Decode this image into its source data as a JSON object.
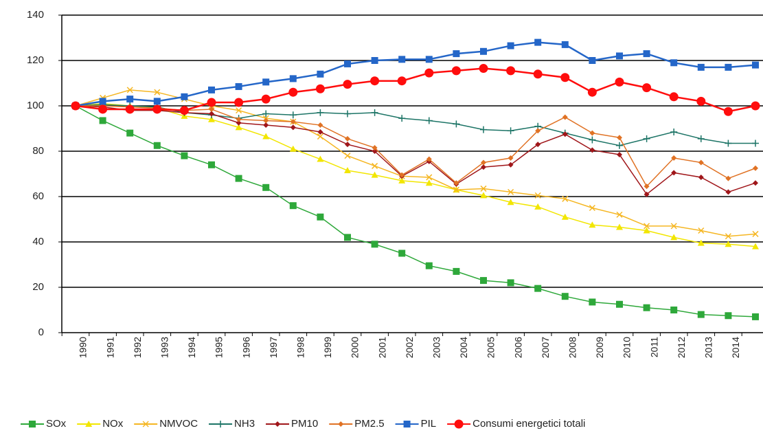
{
  "chart_data": {
    "type": "line",
    "categories": [
      "1990",
      "1991",
      "1992",
      "1993",
      "1994",
      "1995",
      "1996",
      "1997",
      "1998",
      "1999",
      "2000",
      "2001",
      "2002",
      "2003",
      "2004",
      "2005",
      "2006",
      "2007",
      "2008",
      "2009",
      "2010",
      "2011",
      "2012",
      "2013",
      "2014",
      null
    ],
    "ylim": [
      0,
      140
    ],
    "yticks": [
      0,
      20,
      40,
      60,
      80,
      100,
      120,
      140
    ],
    "grid": true,
    "legend": "bottom",
    "series": [
      {
        "name": "SOx",
        "color": "#2ea83a",
        "marker": "square",
        "values": [
          100,
          93.5,
          88,
          82.5,
          78,
          74,
          68,
          64,
          56,
          51,
          42,
          39,
          35,
          29.5,
          27,
          23,
          22,
          19.5,
          16,
          13.5,
          12.5,
          11,
          10,
          8,
          7.5,
          7
        ]
      },
      {
        "name": "NOx",
        "color": "#f2e600",
        "marker": "triangle",
        "values": [
          100,
          101,
          100,
          99,
          95.5,
          94,
          90.5,
          86.5,
          81,
          76.5,
          71.5,
          69.5,
          67,
          66,
          63,
          60.5,
          57.5,
          55.5,
          51,
          47.5,
          46.5,
          45,
          42,
          39.5,
          39,
          38
        ]
      },
      {
        "name": "NMVOC",
        "color": "#f5b622",
        "marker": "cross",
        "values": [
          100,
          103.5,
          107,
          106,
          103,
          100,
          98,
          94.5,
          93,
          86.5,
          78,
          73.5,
          69,
          68.5,
          63,
          63.5,
          62,
          60.5,
          59,
          55,
          52,
          47,
          47,
          45,
          42.5,
          43.5
        ]
      },
      {
        "name": "NH3",
        "color": "#1c7466",
        "marker": "plus",
        "values": [
          100,
          100.5,
          100,
          99.5,
          97,
          96,
          94.5,
          96.5,
          96,
          97,
          96.5,
          97,
          94.5,
          93.5,
          92,
          89.5,
          89,
          91,
          88,
          85,
          82.5,
          85.5,
          88.5,
          85.5,
          83.5,
          83.5
        ]
      },
      {
        "name": "PM10",
        "color": "#a0161a",
        "marker": "diamond",
        "values": [
          100,
          99.5,
          98,
          98,
          97,
          96.5,
          92.5,
          91.5,
          90.5,
          88.5,
          83,
          80,
          69,
          75.5,
          65.5,
          73,
          74,
          83,
          87.5,
          80.5,
          78.5,
          61,
          70.5,
          68.5,
          62,
          66
        ]
      },
      {
        "name": "PM2.5",
        "color": "#e07224",
        "marker": "diamond",
        "values": [
          100,
          100,
          99.5,
          99,
          98,
          98.5,
          94,
          93.5,
          93,
          91.5,
          85.5,
          81.5,
          69.5,
          76.5,
          66,
          75,
          77,
          89,
          95,
          88,
          86,
          64.5,
          77,
          75,
          68,
          72.5
        ]
      },
      {
        "name": "PIL",
        "color": "#2466c8",
        "marker": "square",
        "values": [
          100,
          102,
          103,
          102,
          104,
          107,
          108.5,
          110.5,
          112,
          114,
          118.5,
          120,
          120.5,
          120.5,
          123,
          124,
          126.5,
          128,
          127,
          120,
          122,
          123,
          119,
          117,
          117,
          118
        ]
      },
      {
        "name": "Consumi energetici totali",
        "color": "#ff0d0d",
        "marker": "circle",
        "values": [
          100,
          98.5,
          98.5,
          98.5,
          98,
          101.5,
          101.5,
          103,
          106,
          107.5,
          109.5,
          111,
          111,
          114.5,
          115.5,
          116.5,
          115.5,
          114,
          112.5,
          106,
          110.5,
          108,
          104,
          102,
          97.5,
          100
        ]
      }
    ]
  }
}
